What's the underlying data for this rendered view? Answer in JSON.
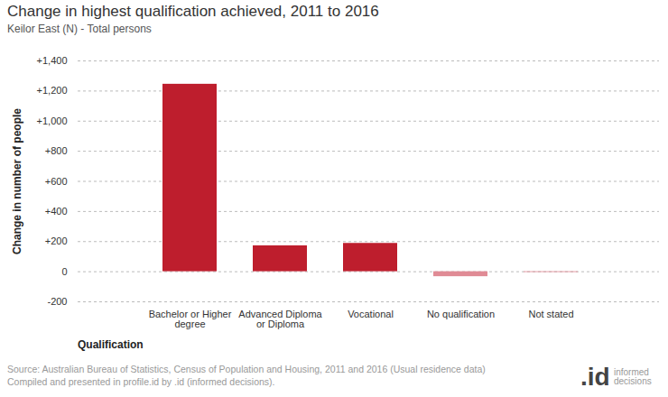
{
  "chart_data": {
    "type": "bar",
    "title": "Change in highest qualification achieved, 2011 to 2016",
    "subtitle": "Keilor East (N) - Total persons",
    "x_label": "Qualification",
    "y_label": "Change in number of people",
    "categories": [
      "Bachelor or Higher degree",
      "Advanced Diploma or Diploma",
      "Vocational",
      "No qualification",
      "Not stated"
    ],
    "values": [
      1245,
      172,
      188,
      -33,
      -5
    ],
    "colors": [
      "#be1e2d",
      "#be1e2d",
      "#be1e2d",
      "#e08b95",
      "#e08b95"
    ],
    "ylim": [
      -200,
      1400
    ],
    "yticks": [
      {
        "value": -200,
        "label": "-200"
      },
      0,
      {
        "value": 200,
        "label": "+200"
      },
      {
        "value": 400,
        "label": "+400"
      },
      {
        "value": 600,
        "label": "+600"
      },
      {
        "value": 800,
        "label": "+800"
      },
      {
        "value": 1000,
        "label": "+1,000"
      },
      {
        "value": 1200,
        "label": "+1,200"
      },
      {
        "value": 1400,
        "label": "+1,400"
      }
    ],
    "grid": true,
    "source": [
      "Source: Australian Bureau of Statistics, Census of Population and Housing, 2011 and 2016 (Usual residence data)",
      "Compiled and presented in profile.id by .id (informed decisions)."
    ],
    "logo": [
      ".id",
      "informed decisions"
    ]
  }
}
